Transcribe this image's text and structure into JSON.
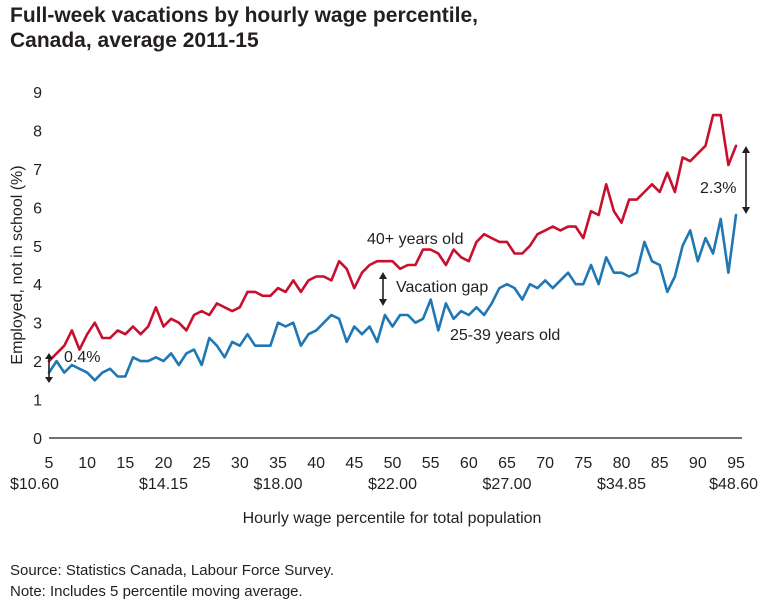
{
  "title_line1": "Full-week vacations by hourly wage percentile,",
  "title_line2": "Canada, average 2011-15",
  "source": "Source: Statistics Canada, Labour Force Survey.",
  "note": "Note: Includes 5 percentile moving average.",
  "colors": {
    "older": "#c8102e",
    "younger": "#1f78b4",
    "text": "#231f20"
  },
  "annotations": {
    "gap_left": "0.4%",
    "gap_right": "2.3%",
    "vacation_gap": "Vacation gap",
    "older_label": "40+ years old",
    "younger_label": "25-39 years old"
  },
  "chart_data": {
    "type": "line",
    "xlabel": "Hourly wage percentile for total population",
    "ylabel": "Employed, not in school (%)",
    "xlim": [
      5,
      95
    ],
    "ylim": [
      0,
      9
    ],
    "x_ticks": [
      5,
      10,
      15,
      20,
      25,
      30,
      35,
      40,
      45,
      50,
      55,
      60,
      65,
      70,
      75,
      80,
      85,
      90,
      95
    ],
    "y_ticks": [
      0,
      1,
      2,
      3,
      4,
      5,
      6,
      7,
      8,
      9
    ],
    "wage_ticks": [
      {
        "x": 5,
        "label": "$10.60"
      },
      {
        "x": 20,
        "label": "$14.15"
      },
      {
        "x": 35,
        "label": "$18.00"
      },
      {
        "x": 50,
        "label": "$22.00"
      },
      {
        "x": 65,
        "label": "$27.00"
      },
      {
        "x": 80,
        "label": "$34.85"
      },
      {
        "x": 95,
        "label": "$48.60"
      }
    ],
    "x": [
      5,
      6,
      7,
      8,
      9,
      10,
      11,
      12,
      13,
      14,
      15,
      16,
      17,
      18,
      19,
      20,
      21,
      22,
      23,
      24,
      25,
      26,
      27,
      28,
      29,
      30,
      31,
      32,
      33,
      34,
      35,
      36,
      37,
      38,
      39,
      40,
      41,
      42,
      43,
      44,
      45,
      46,
      47,
      48,
      49,
      50,
      51,
      52,
      53,
      54,
      55,
      56,
      57,
      58,
      59,
      60,
      61,
      62,
      63,
      64,
      65,
      66,
      67,
      68,
      69,
      70,
      71,
      72,
      73,
      74,
      75,
      76,
      77,
      78,
      79,
      80,
      81,
      82,
      83,
      84,
      85,
      86,
      87,
      88,
      89,
      90,
      91,
      92,
      93,
      94,
      95
    ],
    "series": [
      {
        "name": "40+ years old",
        "values": [
          2.0,
          2.2,
          2.4,
          2.8,
          2.3,
          2.7,
          3.0,
          2.6,
          2.6,
          2.8,
          2.7,
          2.9,
          2.7,
          2.9,
          3.4,
          2.9,
          3.1,
          3.0,
          2.8,
          3.2,
          3.3,
          3.2,
          3.5,
          3.4,
          3.3,
          3.4,
          3.8,
          3.8,
          3.7,
          3.7,
          3.9,
          3.8,
          4.1,
          3.8,
          4.1,
          4.2,
          4.2,
          4.1,
          4.6,
          4.4,
          3.9,
          4.3,
          4.5,
          4.6,
          4.6,
          4.6,
          4.4,
          4.5,
          4.5,
          4.9,
          4.9,
          4.8,
          4.5,
          4.9,
          4.7,
          4.6,
          5.1,
          5.3,
          5.2,
          5.1,
          5.1,
          4.8,
          4.8,
          5.0,
          5.3,
          5.4,
          5.5,
          5.4,
          5.5,
          5.5,
          5.2,
          5.9,
          5.8,
          6.6,
          5.9,
          5.6,
          6.2,
          6.2,
          6.4,
          6.6,
          6.4,
          6.9,
          6.4,
          7.3,
          7.2,
          7.4,
          7.6,
          8.4,
          8.4,
          7.1,
          7.6
        ]
      },
      {
        "name": "25-39 years old",
        "values": [
          1.7,
          2.0,
          1.7,
          1.9,
          1.8,
          1.7,
          1.5,
          1.7,
          1.8,
          1.6,
          1.6,
          2.1,
          2.0,
          2.0,
          2.1,
          2.0,
          2.2,
          1.9,
          2.2,
          2.3,
          1.9,
          2.6,
          2.4,
          2.1,
          2.5,
          2.4,
          2.7,
          2.4,
          2.4,
          2.4,
          3.0,
          2.9,
          3.0,
          2.4,
          2.7,
          2.8,
          3.0,
          3.2,
          3.1,
          2.5,
          2.9,
          2.7,
          2.9,
          2.5,
          3.2,
          2.9,
          3.2,
          3.2,
          3.0,
          3.1,
          3.6,
          2.8,
          3.5,
          3.1,
          3.3,
          3.2,
          3.4,
          3.2,
          3.5,
          3.9,
          4.0,
          3.9,
          3.6,
          4.0,
          3.9,
          4.1,
          3.9,
          4.1,
          4.3,
          4.0,
          4.0,
          4.5,
          4.0,
          4.7,
          4.3,
          4.3,
          4.2,
          4.3,
          5.1,
          4.6,
          4.5,
          3.8,
          4.2,
          5.0,
          5.4,
          4.6,
          5.2,
          4.8,
          5.7,
          4.3,
          5.8
        ]
      }
    ]
  }
}
